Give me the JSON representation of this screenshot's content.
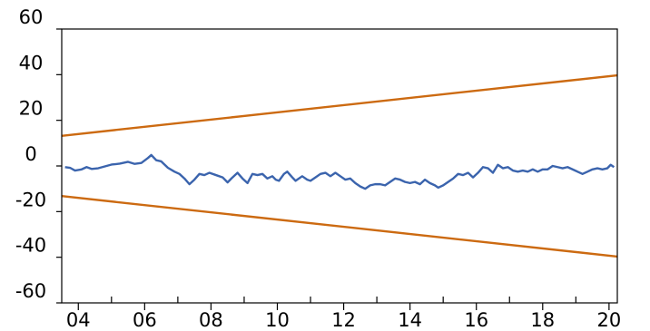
{
  "chart_data": {
    "type": "line",
    "title": "",
    "xlabel": "",
    "ylabel": "",
    "xlim": [
      2003.5,
      2020.25
    ],
    "ylim": [
      -60,
      60
    ],
    "y_ticks": [
      60,
      40,
      20,
      0,
      -20,
      -40,
      -60
    ],
    "y_tick_labels": [
      "60",
      "40",
      "20",
      "0",
      "-20",
      "-40",
      "-60"
    ],
    "x_ticks": [
      2004,
      2006,
      2008,
      2010,
      2012,
      2014,
      2016,
      2018,
      2020
    ],
    "x_tick_labels": [
      "04",
      "06",
      "08",
      "10",
      "12",
      "14",
      "16",
      "18",
      "20"
    ],
    "grid": false,
    "legend": "none",
    "series": [
      {
        "color": "#3b64ad",
        "points": [
          [
            2003.6,
            -0.5
          ],
          [
            2003.75,
            -0.8
          ],
          [
            2003.9,
            -2.0
          ],
          [
            2004.1,
            -1.5
          ],
          [
            2004.25,
            -0.5
          ],
          [
            2004.4,
            -1.3
          ],
          [
            2004.6,
            -1.0
          ],
          [
            2004.8,
            -0.2
          ],
          [
            2005.0,
            0.6
          ],
          [
            2005.25,
            1.0
          ],
          [
            2005.5,
            1.8
          ],
          [
            2005.7,
            0.9
          ],
          [
            2005.9,
            1.3
          ],
          [
            2006.1,
            3.5
          ],
          [
            2006.2,
            4.8
          ],
          [
            2006.35,
            2.5
          ],
          [
            2006.5,
            2.0
          ],
          [
            2006.7,
            -0.8
          ],
          [
            2006.9,
            -2.5
          ],
          [
            2007.05,
            -3.5
          ],
          [
            2007.2,
            -5.5
          ],
          [
            2007.35,
            -8.0
          ],
          [
            2007.5,
            -6.0
          ],
          [
            2007.65,
            -3.5
          ],
          [
            2007.8,
            -4.0
          ],
          [
            2007.95,
            -3.0
          ],
          [
            2008.15,
            -4.0
          ],
          [
            2008.35,
            -5.0
          ],
          [
            2008.5,
            -7.2
          ],
          [
            2008.65,
            -5.0
          ],
          [
            2008.8,
            -3.0
          ],
          [
            2008.95,
            -5.5
          ],
          [
            2009.1,
            -7.5
          ],
          [
            2009.25,
            -3.5
          ],
          [
            2009.4,
            -4.0
          ],
          [
            2009.55,
            -3.5
          ],
          [
            2009.7,
            -5.5
          ],
          [
            2009.85,
            -4.5
          ],
          [
            2009.95,
            -6.0
          ],
          [
            2010.05,
            -6.5
          ],
          [
            2010.2,
            -3.5
          ],
          [
            2010.3,
            -2.5
          ],
          [
            2010.45,
            -5.0
          ],
          [
            2010.55,
            -6.5
          ],
          [
            2010.75,
            -4.5
          ],
          [
            2010.9,
            -6.0
          ],
          [
            2011.0,
            -6.5
          ],
          [
            2011.15,
            -5.0
          ],
          [
            2011.3,
            -3.5
          ],
          [
            2011.45,
            -3.0
          ],
          [
            2011.6,
            -4.5
          ],
          [
            2011.75,
            -3.0
          ],
          [
            2011.9,
            -4.5
          ],
          [
            2012.05,
            -6.0
          ],
          [
            2012.2,
            -5.5
          ],
          [
            2012.35,
            -7.5
          ],
          [
            2012.5,
            -9.0
          ],
          [
            2012.65,
            -10.0
          ],
          [
            2012.8,
            -8.5
          ],
          [
            2012.95,
            -8.0
          ],
          [
            2013.1,
            -8.0
          ],
          [
            2013.25,
            -8.5
          ],
          [
            2013.4,
            -7.0
          ],
          [
            2013.55,
            -5.5
          ],
          [
            2013.7,
            -6.0
          ],
          [
            2013.85,
            -7.0
          ],
          [
            2014.0,
            -7.5
          ],
          [
            2014.15,
            -7.0
          ],
          [
            2014.3,
            -8.0
          ],
          [
            2014.45,
            -6.0
          ],
          [
            2014.6,
            -7.5
          ],
          [
            2014.75,
            -8.5
          ],
          [
            2014.85,
            -9.5
          ],
          [
            2015.0,
            -8.5
          ],
          [
            2015.15,
            -7.0
          ],
          [
            2015.3,
            -5.5
          ],
          [
            2015.45,
            -3.5
          ],
          [
            2015.6,
            -4.0
          ],
          [
            2015.75,
            -3.0
          ],
          [
            2015.9,
            -5.0
          ],
          [
            2016.05,
            -3.0
          ],
          [
            2016.2,
            -0.5
          ],
          [
            2016.35,
            -1.0
          ],
          [
            2016.5,
            -3.0
          ],
          [
            2016.65,
            0.5
          ],
          [
            2016.8,
            -1.0
          ],
          [
            2016.95,
            -0.5
          ],
          [
            2017.1,
            -2.0
          ],
          [
            2017.25,
            -2.5
          ],
          [
            2017.4,
            -2.0
          ],
          [
            2017.55,
            -2.5
          ],
          [
            2017.7,
            -1.5
          ],
          [
            2017.85,
            -2.5
          ],
          [
            2018.0,
            -1.5
          ],
          [
            2018.15,
            -1.5
          ],
          [
            2018.3,
            0.0
          ],
          [
            2018.45,
            -0.5
          ],
          [
            2018.6,
            -1.0
          ],
          [
            2018.75,
            -0.5
          ],
          [
            2018.9,
            -1.5
          ],
          [
            2019.05,
            -2.5
          ],
          [
            2019.2,
            -3.5
          ],
          [
            2019.35,
            -2.5
          ],
          [
            2019.5,
            -1.5
          ],
          [
            2019.65,
            -1.0
          ],
          [
            2019.8,
            -1.5
          ],
          [
            2019.95,
            -1.0
          ],
          [
            2020.05,
            0.5
          ],
          [
            2020.15,
            -0.5
          ],
          [
            2020.3,
            0.5
          ],
          [
            2020.45,
            0.8
          ],
          [
            2020.6,
            -1.0
          ],
          [
            2020.7,
            -0.5
          ],
          [
            2020.85,
            -1.5
          ],
          [
            2020.95,
            -1.0
          ]
        ]
      },
      {
        "color": "#cc6a11",
        "points": [
          [
            2003.5,
            13.2
          ],
          [
            2020.25,
            39.7
          ]
        ]
      },
      {
        "color": "#cc6a11",
        "points": [
          [
            2003.5,
            -13.2
          ],
          [
            2020.25,
            -39.7
          ]
        ]
      }
    ]
  }
}
